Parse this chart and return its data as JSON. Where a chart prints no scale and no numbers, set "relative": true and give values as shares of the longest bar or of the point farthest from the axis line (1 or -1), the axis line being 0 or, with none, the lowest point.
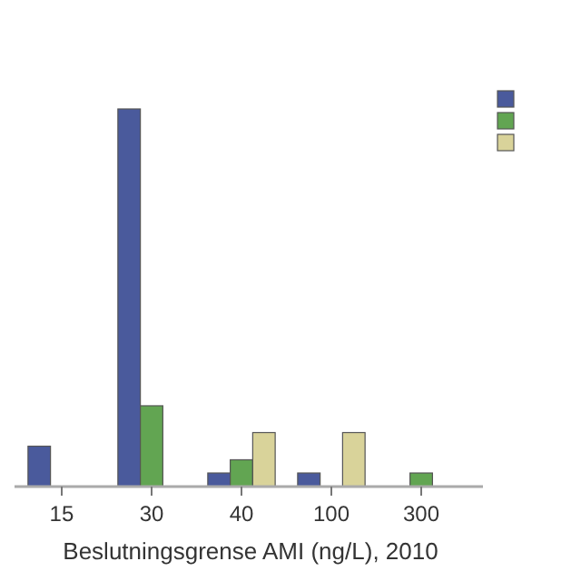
{
  "chart_data": {
    "type": "bar",
    "xlabel": "Beslutningsgrense AMI (ng/L), 2010",
    "relative": true,
    "categories": [
      "15",
      "30",
      "40",
      "100",
      "300"
    ],
    "series": [
      {
        "color": "#4a5a9c",
        "values": [
          0.107,
          1,
          0.036,
          0.036,
          null
        ]
      },
      {
        "color": "#62a552",
        "values": [
          null,
          0.214,
          0.071,
          null,
          0.036
        ]
      },
      {
        "color": "#d9d39a",
        "values": [
          null,
          null,
          0.143,
          0.143,
          null
        ]
      }
    ]
  }
}
